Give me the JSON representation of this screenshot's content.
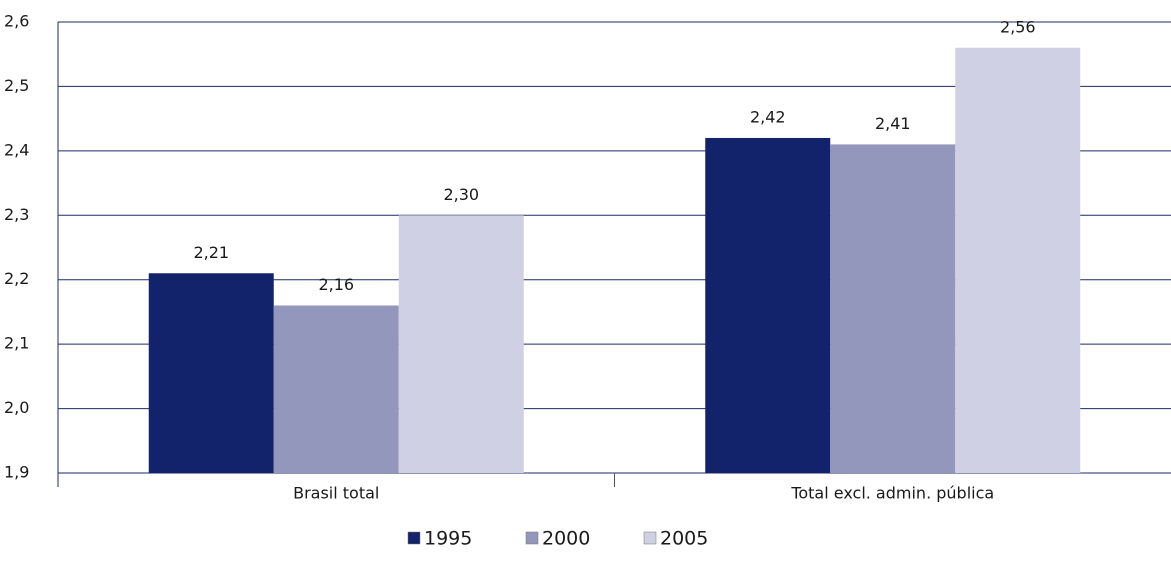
{
  "chart_data": {
    "type": "bar",
    "categories": [
      "Brasil total",
      "Total excl. admin. pública"
    ],
    "series": [
      {
        "name": "1995",
        "color": "#12226b",
        "values": [
          2.21,
          2.42
        ],
        "value_labels": [
          "2,21",
          "2,42"
        ]
      },
      {
        "name": "2000",
        "color": "#9497bc",
        "values": [
          2.16,
          2.41
        ],
        "value_labels": [
          "2,16",
          "2,41"
        ]
      },
      {
        "name": "2005",
        "color": "#cfd0e3",
        "values": [
          2.3,
          2.56
        ],
        "value_labels": [
          "2,30",
          "2,56"
        ]
      }
    ],
    "ylim": [
      1.9,
      2.6
    ],
    "yticks": [
      {
        "value": 1.9,
        "label": "1,9"
      },
      {
        "value": 2.0,
        "label": "2,0"
      },
      {
        "value": 2.1,
        "label": "2,1"
      },
      {
        "value": 2.2,
        "label": "2,2"
      },
      {
        "value": 2.3,
        "label": "2,3"
      },
      {
        "value": 2.4,
        "label": "2,4"
      },
      {
        "value": 2.5,
        "label": "2,5"
      },
      {
        "value": 2.6,
        "label": "2,6"
      }
    ],
    "grid": true,
    "legend": "bottom"
  }
}
